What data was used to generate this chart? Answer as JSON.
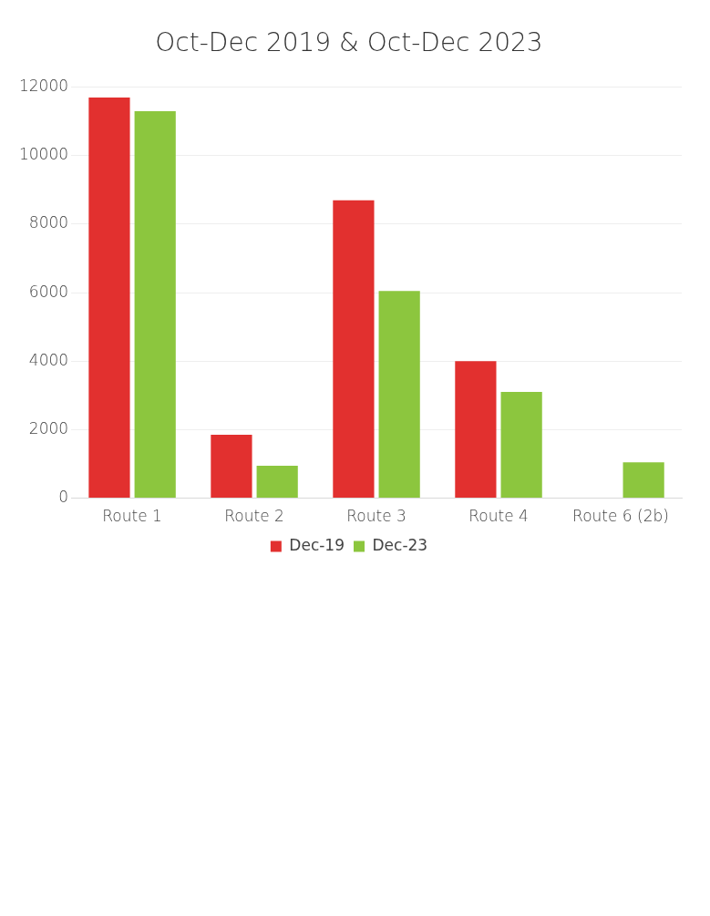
{
  "chart_data": {
    "type": "bar",
    "title": "Oct-Dec 2019 & Oct-Dec 2023",
    "categories": [
      "Route 1",
      "Route 2",
      "Route 3",
      "Route 4",
      "Route 6 (2b)"
    ],
    "series": [
      {
        "name": "Dec-19",
        "color": "#e2302f",
        "values": [
          11700,
          1850,
          8700,
          4000,
          null
        ]
      },
      {
        "name": "Dec-23",
        "color": "#8cc63e",
        "values": [
          11300,
          950,
          6050,
          3100,
          1050
        ]
      }
    ],
    "ylim": [
      0,
      12000
    ],
    "yticks": [
      0,
      2000,
      4000,
      6000,
      8000,
      10000,
      12000
    ],
    "grid": "y",
    "legend": "bottom"
  }
}
